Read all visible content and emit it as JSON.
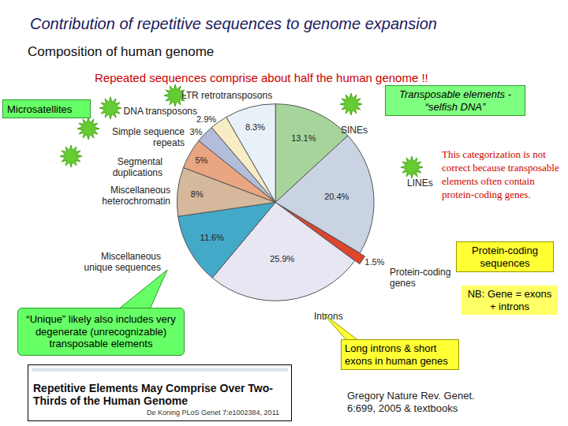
{
  "chart_data": {
    "type": "pie",
    "title": "Contribution of repetitive sequences to genome expansion",
    "subtitle": "Composition of human genome",
    "categories": [
      "SINEs",
      "LINEs",
      "Protein-coding genes",
      "Introns",
      "Miscellaneous unique sequences",
      "Miscellaneous heterochromatin",
      "Segmental duplications",
      "Simple sequence repeats",
      "DNA transposons",
      "LTR retrotransposons"
    ],
    "values": [
      13.1,
      20.4,
      1.5,
      25.9,
      11.6,
      8,
      5,
      3,
      2.9,
      8.3
    ],
    "value_labels": [
      "13.1%",
      "20.4%",
      "1.5%",
      "25.9%",
      "11.6%",
      "8%",
      "5%",
      "3%",
      "2.9%",
      "8.3%"
    ],
    "colors": [
      "#a6d49a",
      "#c9d3e2",
      "#e0442a",
      "#e8e6f2",
      "#43a9c9",
      "#d6b89c",
      "#eaa582",
      "#b3bcd9",
      "#f7ecc4",
      "#e9f1f8"
    ],
    "data_labels": true,
    "annotations": [
      "Repeated sequences comprise about half the human genome !!",
      "Microsatellites",
      "Transposable elements - “selfish DNA”",
      "This categorization is not correct because transposable elements often contain protein-coding genes.",
      "Protein-coding sequences",
      "NB: Gene = exons + introns",
      "“Unique” likely also includes very degenerate (unrecognizable) transposable elements",
      "Long introns & short exons in human genes",
      "Repetitive Elements May Comprise Over Two-Thirds of the Human Genome",
      "De Koning PLoS Genet 7:e1002384, 2011",
      "Gregory Nature Rev. Genet. 6:699, 2005 & textbooks"
    ]
  }
}
